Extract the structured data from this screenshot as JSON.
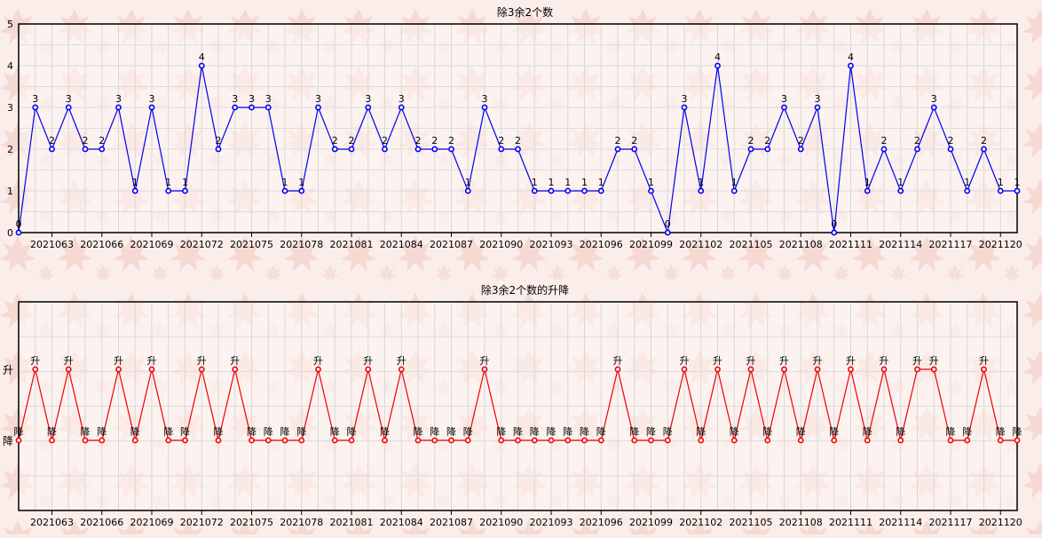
{
  "chart_data": [
    {
      "type": "line",
      "title": "除3余2个数",
      "xlabel": "",
      "ylabel": "",
      "ylim": [
        0,
        5
      ],
      "yticks": [
        "0",
        "1",
        "2",
        "3",
        "4",
        "5"
      ],
      "grid": true,
      "xtick_labels": [
        "2021063",
        "2021066",
        "2021069",
        "2021072",
        "2021075",
        "2021078",
        "2021081",
        "2021084",
        "2021087",
        "2021090",
        "2021093",
        "2021096",
        "2021099",
        "2021102",
        "2021105",
        "2021108",
        "2021111",
        "2021114",
        "2021117",
        "2021120"
      ],
      "series": [
        {
          "color": "#0000ee",
          "values": [
            0,
            3,
            2,
            3,
            2,
            2,
            3,
            1,
            3,
            1,
            1,
            4,
            2,
            3,
            3,
            3,
            1,
            1,
            3,
            2,
            2,
            3,
            2,
            3,
            2,
            2,
            2,
            1,
            3,
            2,
            2,
            1,
            1,
            1,
            1,
            1,
            2,
            2,
            1,
            0,
            3,
            1,
            4,
            1,
            2,
            2,
            3,
            2,
            3,
            0,
            4,
            1,
            2,
            1,
            2,
            3,
            2,
            1,
            2,
            1,
            1
          ]
        }
      ]
    },
    {
      "type": "line",
      "title": "除3余2个数的升降",
      "xlabel": "",
      "ylabel": "",
      "yticks": [
        "升",
        "降"
      ],
      "grid": true,
      "xtick_labels": [
        "2021063",
        "2021066",
        "2021069",
        "2021072",
        "2021075",
        "2021078",
        "2021081",
        "2021084",
        "2021087",
        "2021090",
        "2021093",
        "2021096",
        "2021099",
        "2021102",
        "2021105",
        "2021108",
        "2021111",
        "2021114",
        "2021117",
        "2021120"
      ],
      "series": [
        {
          "color": "#ee0000",
          "values": [
            "降",
            "升",
            "降",
            "升",
            "降",
            "降",
            "升",
            "降",
            "升",
            "降",
            "降",
            "升",
            "降",
            "升",
            "降",
            "降",
            "降",
            "降",
            "升",
            "降",
            "降",
            "升",
            "降",
            "升",
            "降",
            "降",
            "降",
            "降",
            "升",
            "降",
            "降",
            "降",
            "降",
            "降",
            "降",
            "降",
            "升",
            "降",
            "降",
            "降",
            "升",
            "降",
            "升",
            "降",
            "升",
            "降",
            "升",
            "降",
            "升",
            "降",
            "升",
            "降",
            "升",
            "降",
            "升",
            "升",
            "降",
            "降",
            "升",
            "降",
            "降"
          ]
        }
      ]
    }
  ]
}
